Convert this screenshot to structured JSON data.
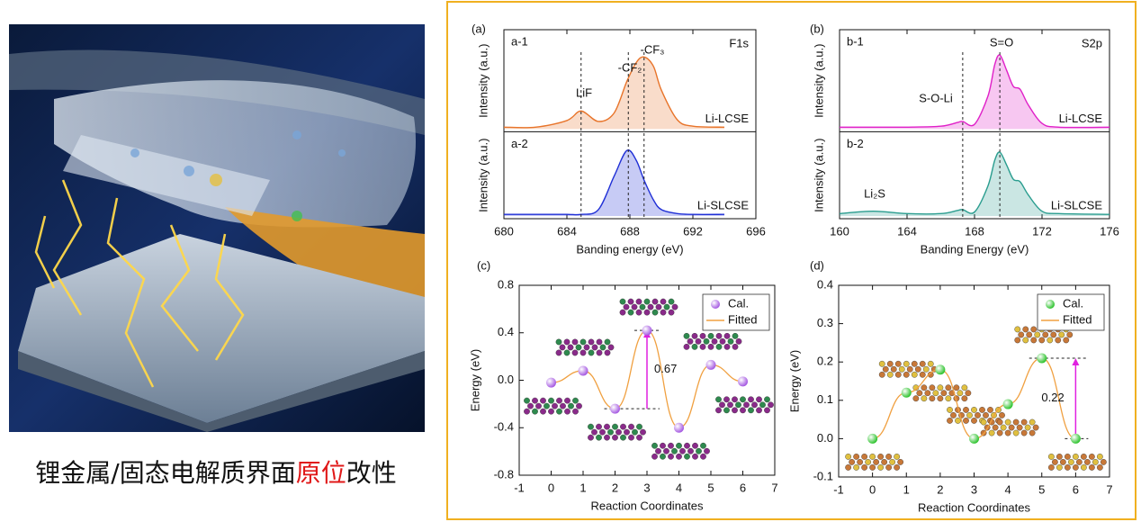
{
  "caption": {
    "parts": [
      "锂金属/固态电解质界面",
      "原位",
      "改性"
    ]
  },
  "chart_data": [
    {
      "type": "xps",
      "label": "(a)",
      "core_level": "F1s",
      "xlabel": "Banding energy (eV)",
      "ylabel": "Intensity (a.u.)",
      "xlim": [
        680,
        696
      ],
      "xticks": [
        680,
        684,
        688,
        692,
        696
      ],
      "ylim": [
        0,
        1
      ],
      "reference_lines": [
        684.9,
        687.9,
        688.9
      ],
      "annotations": [
        "LiF",
        "-CF₂",
        "-CF₃"
      ],
      "series": [
        {
          "panel": "a-1",
          "name": "Li-LCSE",
          "color": "#e8742a",
          "x": [
            680,
            682,
            684,
            684.9,
            686,
            687,
            687.8,
            688.4,
            688.9,
            689.5,
            690,
            691,
            692,
            694
          ],
          "values": [
            0.02,
            0.02,
            0.09,
            0.19,
            0.08,
            0.17,
            0.5,
            0.7,
            0.76,
            0.66,
            0.41,
            0.1,
            0.03,
            0.02
          ]
        },
        {
          "panel": "a-2",
          "name": "Li-SLCSE",
          "color": "#1f2fd6",
          "x": [
            680,
            682,
            684,
            684.9,
            686,
            687,
            687.8,
            688.4,
            688.9,
            689.5,
            690,
            691,
            692,
            694
          ],
          "values": [
            0.02,
            0.02,
            0.02,
            0.02,
            0.08,
            0.5,
            0.82,
            0.7,
            0.45,
            0.2,
            0.08,
            0.03,
            0.02,
            0.02
          ]
        }
      ]
    },
    {
      "type": "xps",
      "label": "(b)",
      "core_level": "S2p",
      "xlabel": "Banding Energy (eV)",
      "ylabel": "Intensity (a.u.)",
      "xlim": [
        160,
        176
      ],
      "xticks": [
        160,
        164,
        168,
        172,
        176
      ],
      "ylim": [
        0,
        1
      ],
      "reference_lines": [
        167.3,
        169.5
      ],
      "annotations": [
        "S=O",
        "S-O-Li",
        "Li₂S"
      ],
      "series": [
        {
          "panel": "b-1",
          "name": "Li-LCSE",
          "color": "#e020c8",
          "x": [
            160,
            162,
            164,
            166,
            167,
            167.3,
            168,
            168.8,
            169.2,
            169.5,
            169.9,
            170.3,
            170.7,
            171.2,
            172,
            173,
            176
          ],
          "values": [
            0.02,
            0.02,
            0.02,
            0.03,
            0.07,
            0.08,
            0.05,
            0.35,
            0.68,
            0.78,
            0.62,
            0.45,
            0.42,
            0.25,
            0.06,
            0.02,
            0.02
          ]
        },
        {
          "panel": "b-2",
          "name": "Li-SLCSE",
          "color": "#2a9d8f",
          "x": [
            160,
            162,
            164,
            166,
            167,
            167.3,
            168,
            168.8,
            169.2,
            169.5,
            169.9,
            170.3,
            170.7,
            171.2,
            172,
            173,
            176
          ],
          "values": [
            0.03,
            0.06,
            0.03,
            0.03,
            0.07,
            0.08,
            0.05,
            0.38,
            0.7,
            0.8,
            0.64,
            0.46,
            0.43,
            0.26,
            0.06,
            0.03,
            0.02
          ]
        }
      ]
    },
    {
      "type": "energy",
      "label": "(c)",
      "xlabel": "Reaction Coordinates",
      "ylabel": "Energy (eV)",
      "xlim": [
        -1,
        7
      ],
      "xticks": [
        -1,
        0,
        1,
        2,
        3,
        4,
        5,
        6,
        7
      ],
      "ylim": [
        -0.8,
        0.8
      ],
      "yticks": [
        -0.8,
        -0.4,
        {
          "value": 0,
          "label": "0.0"
        },
        0.4,
        0.8
      ],
      "x": [
        0,
        1,
        2,
        3,
        4,
        5,
        6
      ],
      "series": [
        {
          "name": "Cal.",
          "color": "#a050e0",
          "values": [
            -0.02,
            0.08,
            -0.24,
            0.42,
            -0.4,
            0.13,
            -0.01
          ]
        },
        {
          "name": "Fitted",
          "color": "#f0a040",
          "values": [
            -0.02,
            0.08,
            -0.24,
            0.42,
            -0.4,
            0.13,
            -0.01
          ]
        }
      ],
      "annotation": "0.67"
    },
    {
      "type": "energy",
      "label": "(d)",
      "xlabel": "Reaction Coordinates",
      "ylabel": "Energy (eV)",
      "xlim": [
        -1,
        7
      ],
      "xticks": [
        -1,
        0,
        1,
        2,
        3,
        4,
        5,
        6,
        7
      ],
      "ylim": [
        -0.1,
        0.4
      ],
      "yticks": [
        -0.1,
        {
          "value": 0,
          "label": "0.0"
        },
        0.1,
        0.2,
        0.3,
        0.4
      ],
      "x": [
        0,
        1,
        2,
        3,
        4,
        5,
        6
      ],
      "series": [
        {
          "name": "Cal.",
          "color": "#22c022",
          "values": [
            0.0,
            0.12,
            0.18,
            0.0,
            0.09,
            0.21,
            0.0
          ]
        },
        {
          "name": "Fitted",
          "color": "#f0a040",
          "values": [
            0.0,
            0.12,
            0.18,
            0.0,
            0.09,
            0.21,
            0.0
          ]
        }
      ],
      "annotation": "0.22"
    }
  ]
}
